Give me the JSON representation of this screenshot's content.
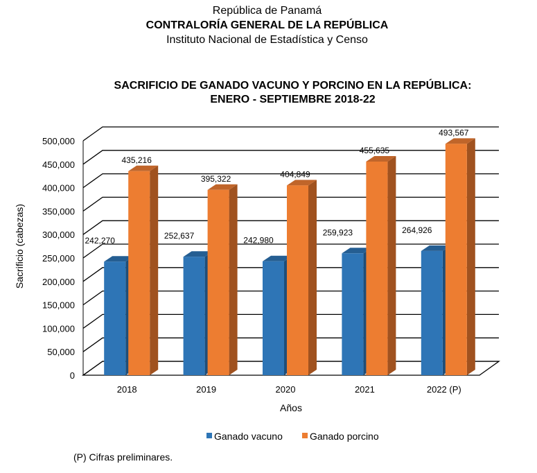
{
  "header": {
    "line1": "República de Panamá",
    "line2": "CONTRALORÍA GENERAL DE LA REPÚBLICA",
    "line3": "Instituto Nacional de Estadística y Censo"
  },
  "footnote": "(P) Cifras preliminares.",
  "chart_data": {
    "type": "bar",
    "title": [
      "SACRIFICIO DE GANADO VACUNO Y PORCINO EN LA REPÚBLICA:",
      "ENERO - SEPTIEMBRE 2018-22"
    ],
    "xlabel": "Años",
    "ylabel": "Sacrificio (cabezas)",
    "ylim": [
      0,
      500000
    ],
    "yticks": [
      "0",
      "50,000",
      "100,000",
      "150,000",
      "200,000",
      "250,000",
      "300,000",
      "350,000",
      "400,000",
      "450,000",
      "500,000"
    ],
    "categories": [
      "2018",
      "2019",
      "2020",
      "2021",
      "2022 (P)"
    ],
    "series": [
      {
        "name": "Ganado vacuno",
        "color": "#2e75b6",
        "values": [
          242270,
          252637,
          242980,
          259923,
          264926
        ],
        "labels": [
          "242,270",
          "252,637",
          "242,980",
          "259,923",
          "264,926"
        ]
      },
      {
        "name": "Ganado porcino",
        "color": "#ed7d31",
        "values": [
          435216,
          395322,
          404849,
          455635,
          493567
        ],
        "labels": [
          "435,216",
          "395,322",
          "404,849",
          "455,635",
          "493,567"
        ]
      }
    ],
    "legend": "bottom",
    "grid": true
  }
}
